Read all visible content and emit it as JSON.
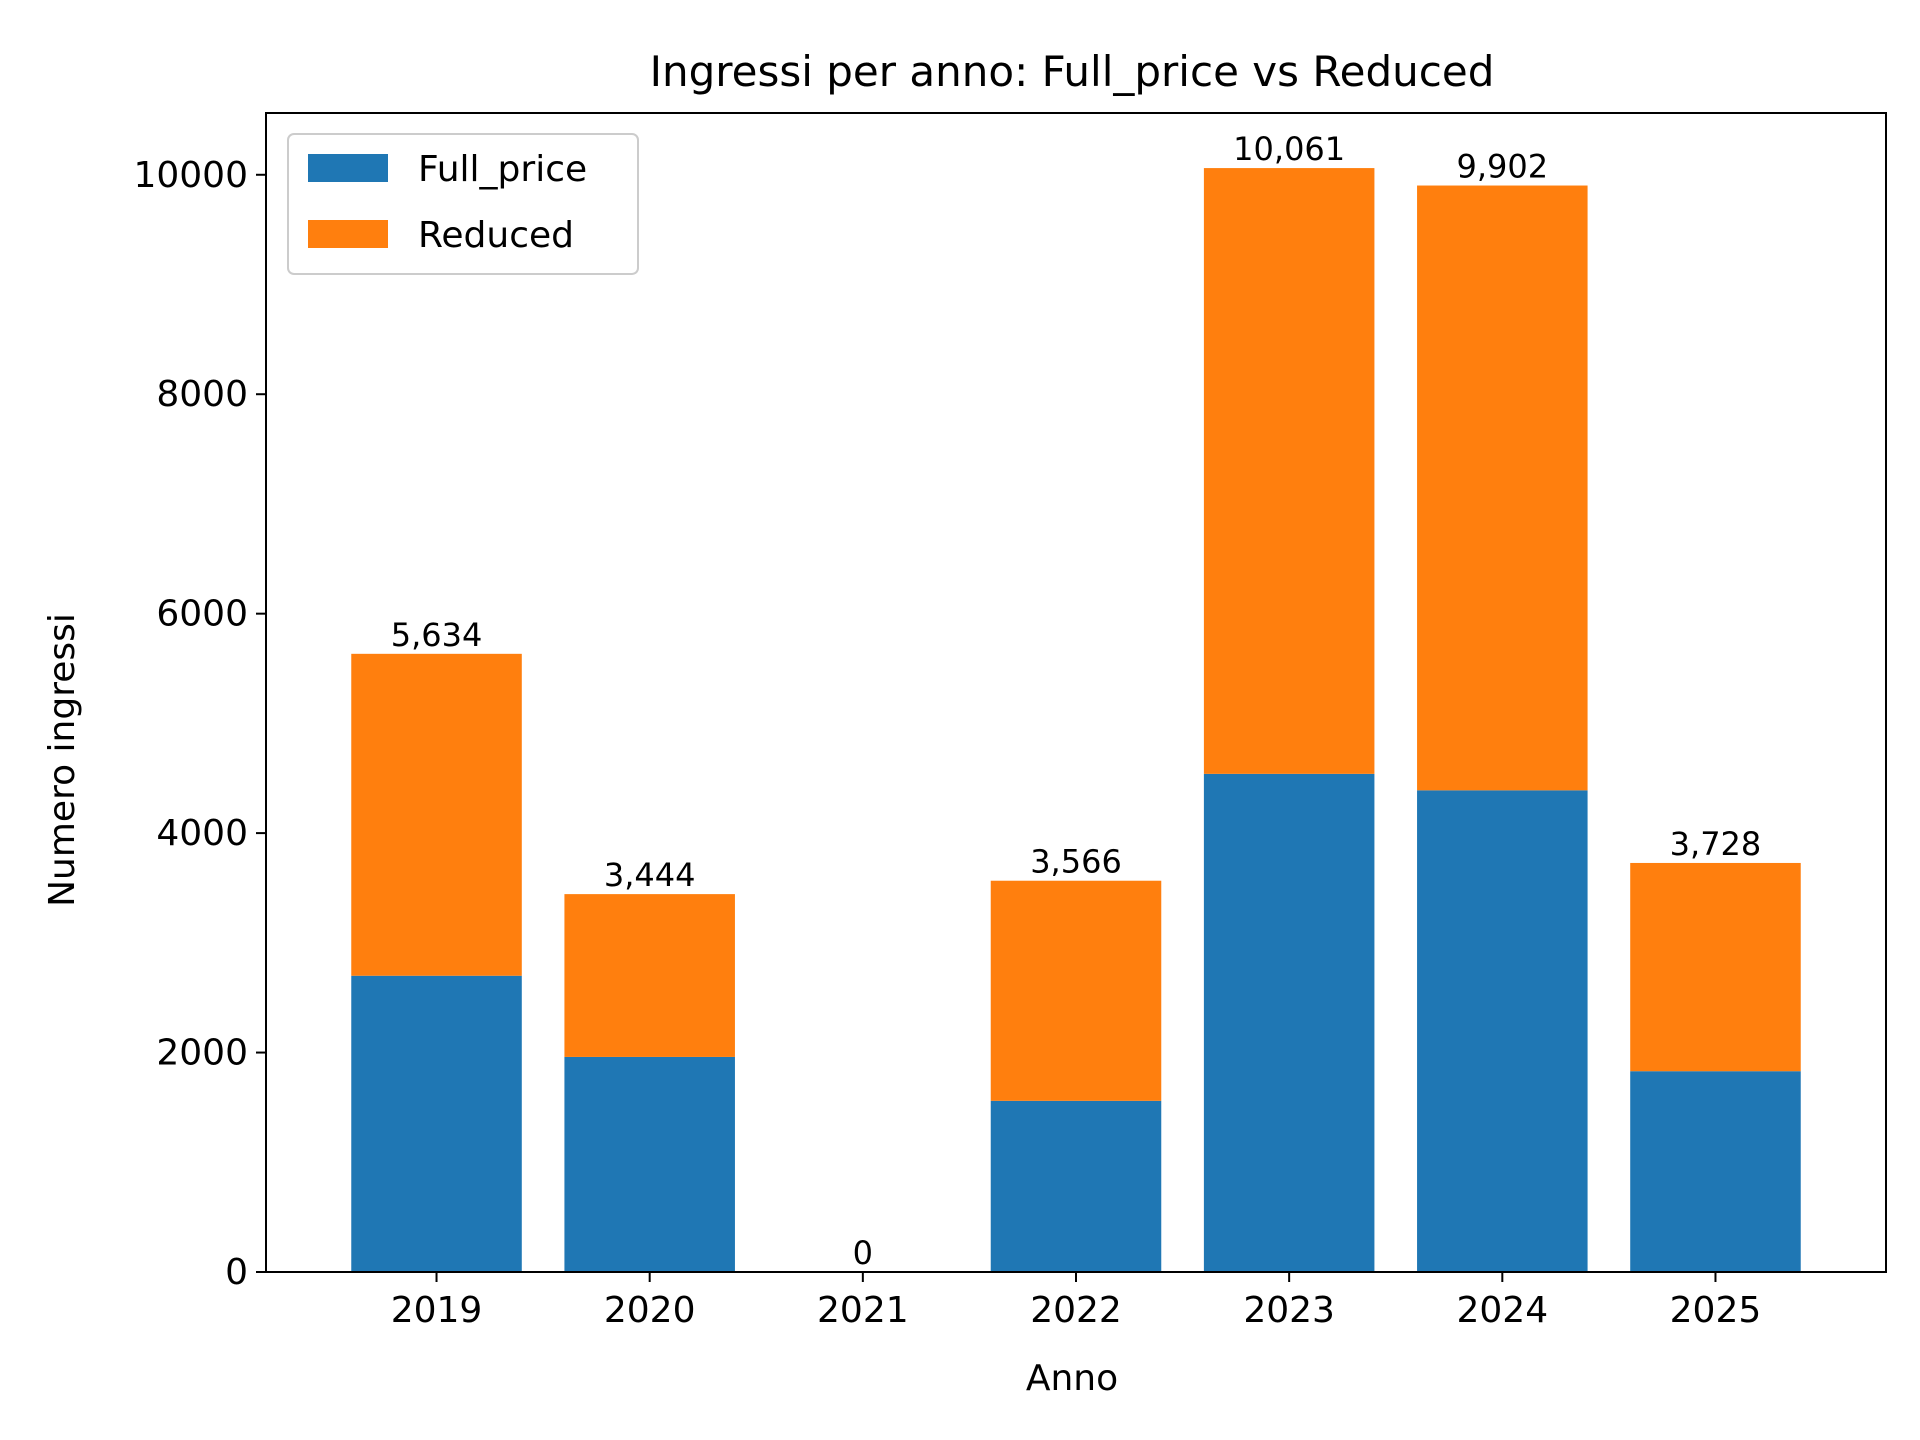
{
  "chart_data": {
    "type": "bar",
    "stacked": true,
    "title": "Ingressi per anno: Full_price vs Reduced",
    "xlabel": "Anno",
    "ylabel": "Numero ingressi",
    "categories": [
      "2019",
      "2020",
      "2021",
      "2022",
      "2023",
      "2024",
      "2025"
    ],
    "series": [
      {
        "name": "Full_price",
        "color": "#1f77b4",
        "values": [
          2700,
          1960,
          0,
          1560,
          4540,
          4390,
          1830
        ]
      },
      {
        "name": "Reduced",
        "color": "#ff7f0e",
        "values": [
          2934,
          1484,
          0,
          2006,
          5521,
          5512,
          1898
        ]
      }
    ],
    "totals_labels": [
      "5,634",
      "3,444",
      "0",
      "3,566",
      "10,061",
      "9,902",
      "3,728"
    ],
    "ylim": [
      0,
      10563
    ],
    "yticks": [
      0,
      2000,
      4000,
      6000,
      8000,
      10000
    ],
    "grid": false,
    "legend_position": "upper-left"
  }
}
